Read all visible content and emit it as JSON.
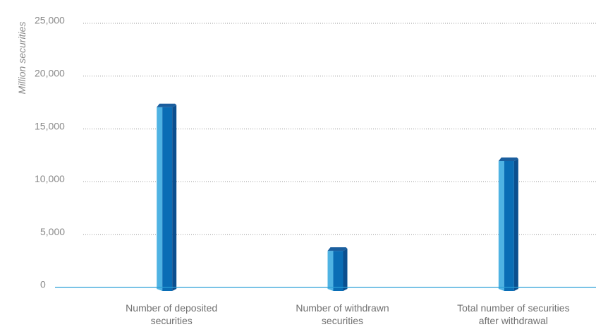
{
  "chart_data": {
    "type": "bar",
    "title": "",
    "xlabel": "",
    "ylabel": "Million securities",
    "ylim": [
      0,
      25000
    ],
    "yticks": [
      0,
      5000,
      10000,
      15000,
      20000,
      25000
    ],
    "ytick_labels": [
      "0",
      "5,000",
      "10,000",
      "15,000",
      "20,000",
      "25,000"
    ],
    "categories": [
      "Number of deposited securities",
      "Number of withdrawn securities",
      "Total number of securities after withdrawal"
    ],
    "category_lines": [
      [
        "Number of deposited",
        "securities"
      ],
      [
        "Number of withdrawn",
        "securities"
      ],
      [
        "Total number of securities",
        "after withdrawal"
      ]
    ],
    "values": [
      17400,
      3800,
      12300
    ],
    "grid": true,
    "legend": "none",
    "colors": {
      "bar_front": "#0a6db5",
      "bar_left": "#4fb3e3",
      "bar_right": "#0b4f8f",
      "bar_top": "#1a5e9e",
      "axis": "#2a9fd6"
    }
  }
}
